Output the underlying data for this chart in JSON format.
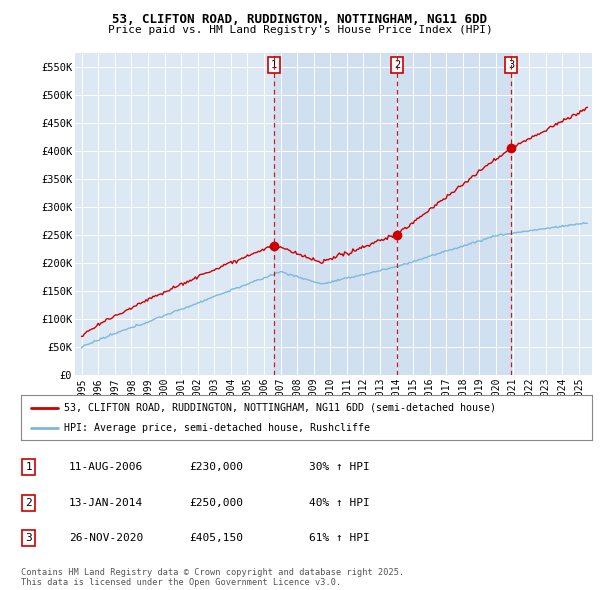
{
  "title1": "53, CLIFTON ROAD, RUDDINGTON, NOTTINGHAM, NG11 6DD",
  "title2": "Price paid vs. HM Land Registry's House Price Index (HPI)",
  "ylabel_ticks": [
    "£0",
    "£50K",
    "£100K",
    "£150K",
    "£200K",
    "£250K",
    "£300K",
    "£350K",
    "£400K",
    "£450K",
    "£500K",
    "£550K"
  ],
  "ytick_values": [
    0,
    50000,
    100000,
    150000,
    200000,
    250000,
    300000,
    350000,
    400000,
    450000,
    500000,
    550000
  ],
  "ylim": [
    0,
    575000
  ],
  "xlim_start": 1994.6,
  "xlim_end": 2025.8,
  "sale_dates": [
    2006.61,
    2014.04,
    2020.91
  ],
  "sale_prices": [
    230000,
    250000,
    405150
  ],
  "sale_labels": [
    "1",
    "2",
    "3"
  ],
  "background_color": "#dce9f5",
  "plot_bg": "#dce9f5",
  "red_line_color": "#cc0000",
  "blue_line_color": "#7fb8d8",
  "grid_color": "#ffffff",
  "legend_label_red": "53, CLIFTON ROAD, RUDDINGTON, NOTTINGHAM, NG11 6DD (semi-detached house)",
  "legend_label_blue": "HPI: Average price, semi-detached house, Rushcliffe",
  "table_rows": [
    {
      "num": "1",
      "date": "11-AUG-2006",
      "price": "£230,000",
      "hpi": "30% ↑ HPI"
    },
    {
      "num": "2",
      "date": "13-JAN-2014",
      "price": "£250,000",
      "hpi": "40% ↑ HPI"
    },
    {
      "num": "3",
      "date": "26-NOV-2020",
      "price": "£405,150",
      "hpi": "61% ↑ HPI"
    }
  ],
  "footer": "Contains HM Land Registry data © Crown copyright and database right 2025.\nThis data is licensed under the Open Government Licence v3.0.",
  "dashed_line_color": "#cc0000",
  "marker_box_color": "#cc0000",
  "shade_color": "#c5d8ed"
}
